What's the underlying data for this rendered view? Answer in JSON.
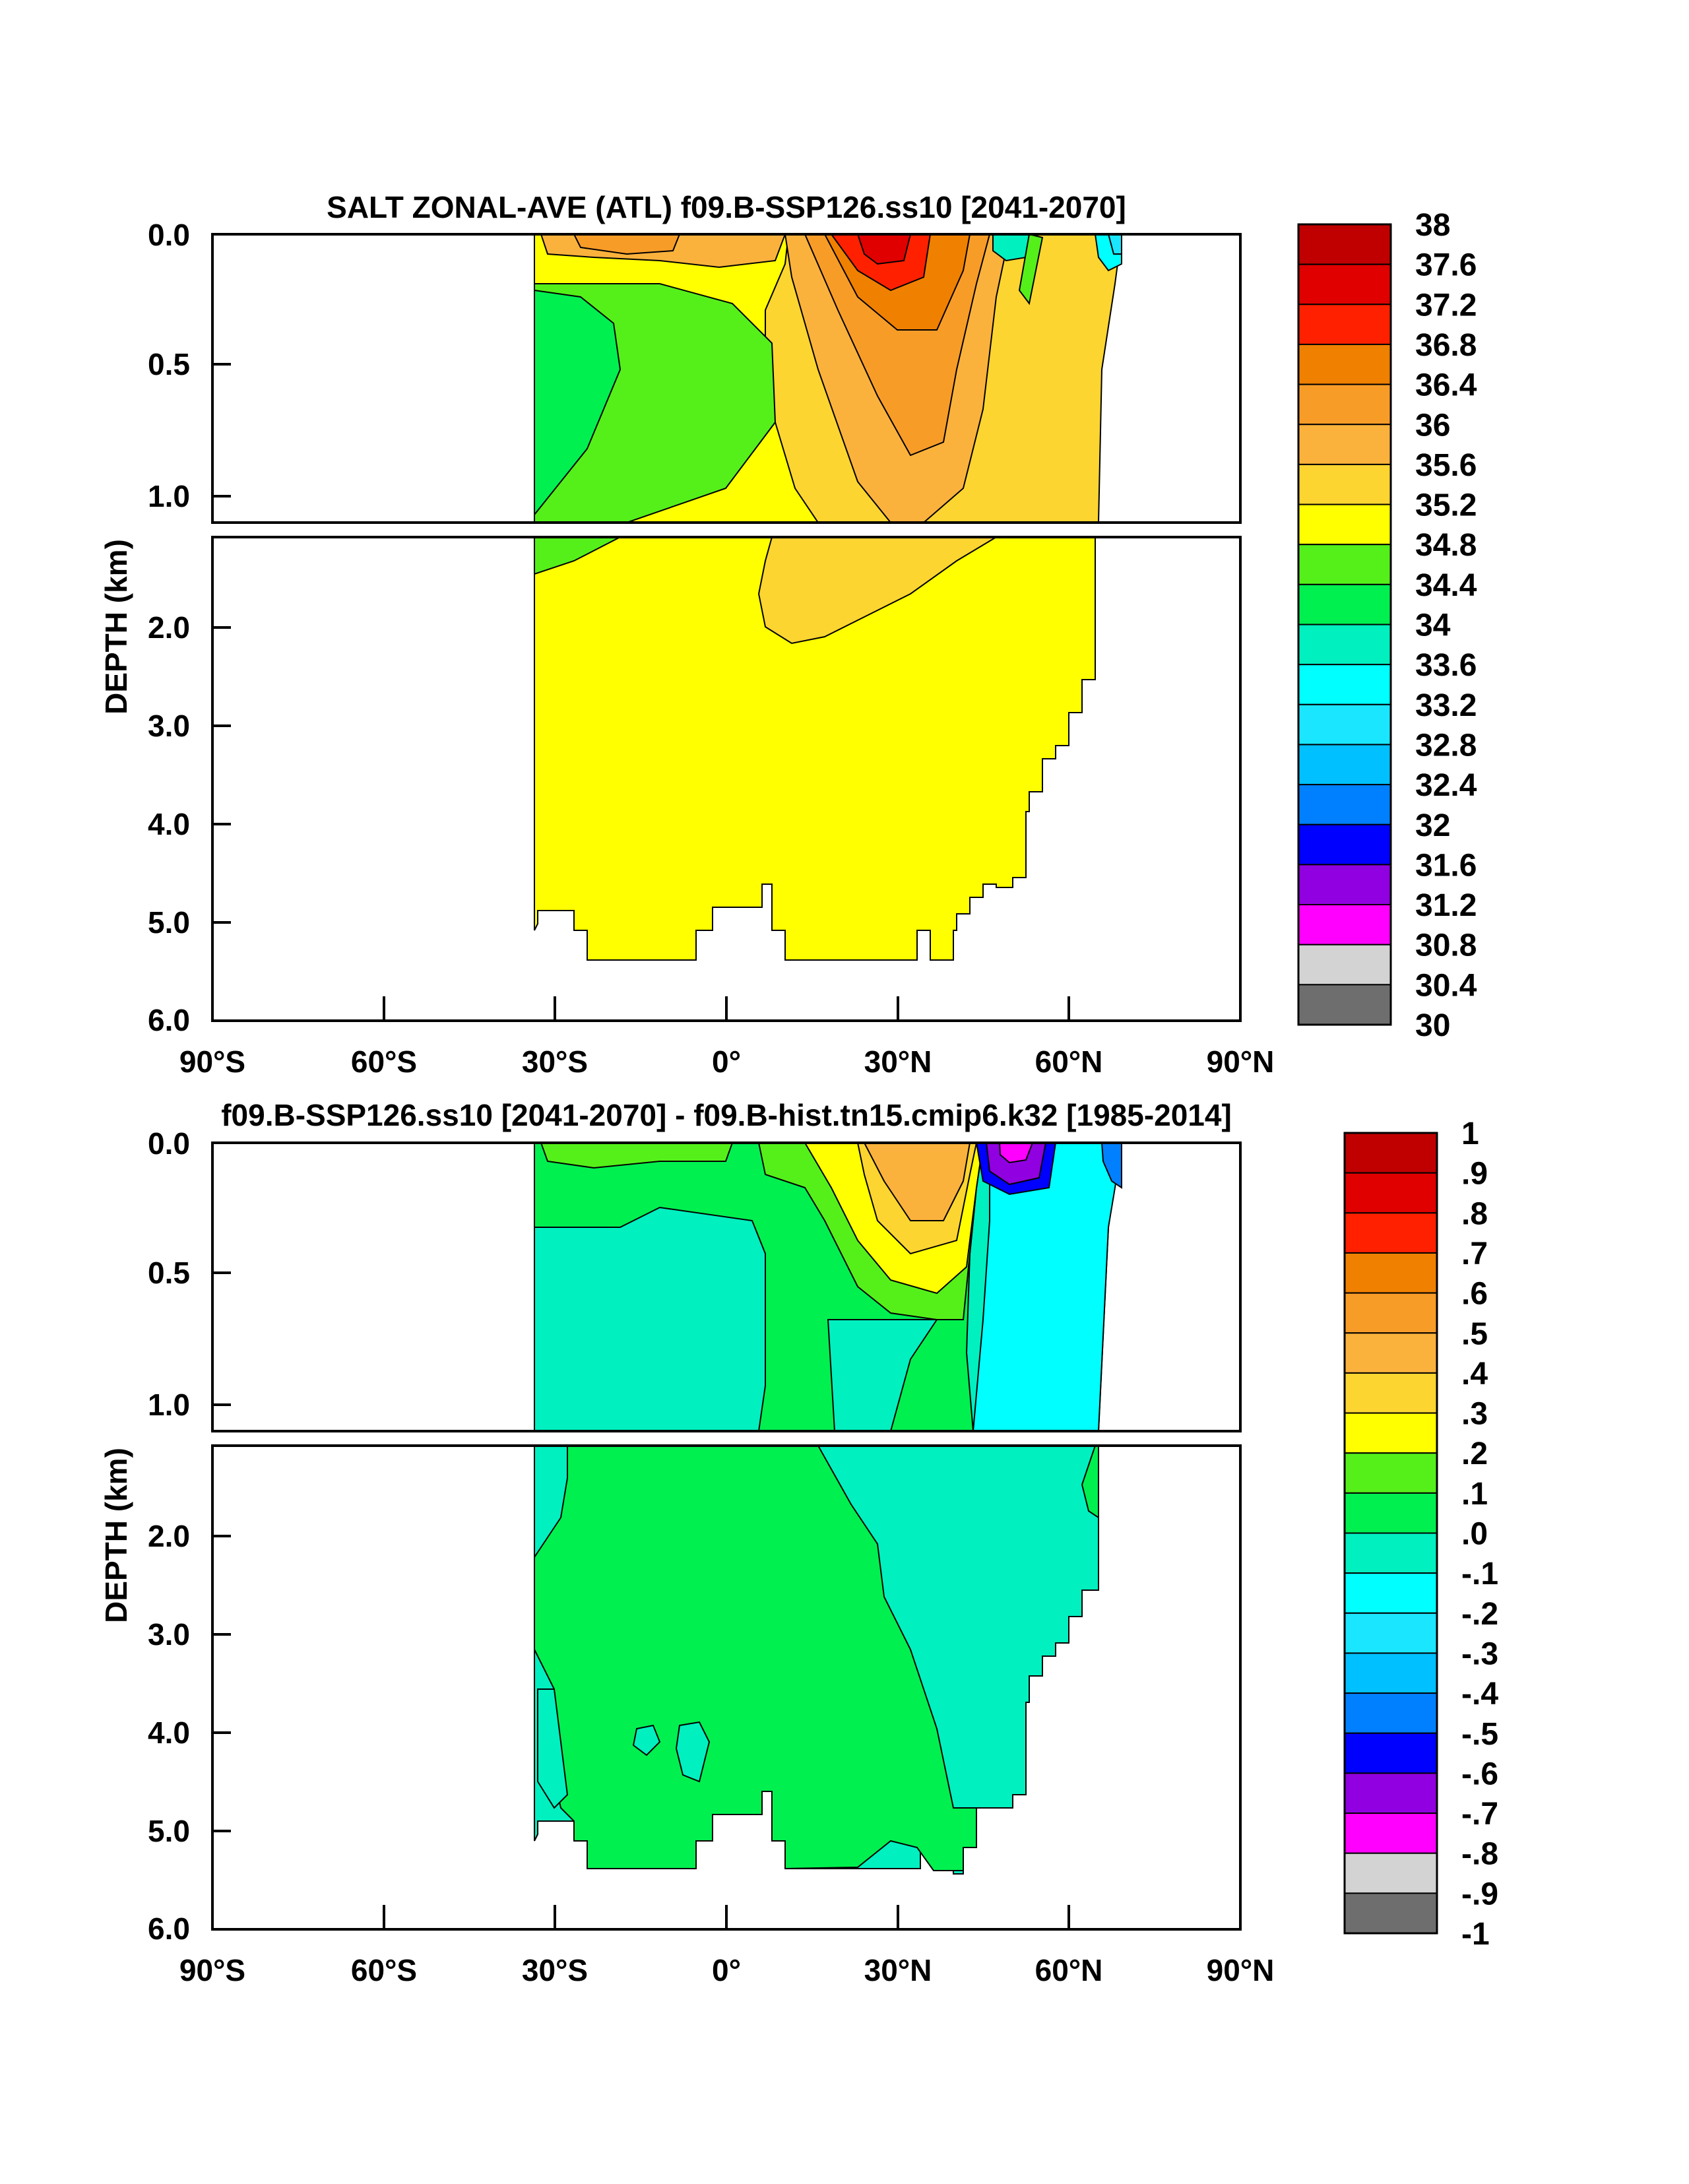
{
  "chart_data": [
    {
      "type": "heatmap",
      "title": "SALT ZONAL-AVE (ATL) f09.B-SSP126.ss10 [2041-2070]",
      "ylabel": "DEPTH (km)",
      "x_ticks": [
        "90°S",
        "60°S",
        "30°S",
        "0°",
        "30°N",
        "60°N",
        "90°N"
      ],
      "y_ticks_upper": [
        "0.0",
        "0.5",
        "1.0"
      ],
      "y_ticks_lower": [
        "2.0",
        "3.0",
        "4.0",
        "5.0",
        "6.0"
      ],
      "xlim": [
        -90,
        90
      ],
      "ylim_upper_km": [
        0,
        1.1
      ],
      "ylim_lower_km": [
        1.1,
        6.0
      ],
      "colorbar": {
        "labels": [
          "38",
          "37.6",
          "37.2",
          "36.8",
          "36.4",
          "36",
          "35.6",
          "35.2",
          "34.8",
          "34.4",
          "34",
          "33.6",
          "33.2",
          "32.8",
          "32.4",
          "32",
          "31.6",
          "31.2",
          "30.8",
          "30.4",
          "30"
        ],
        "colors": [
          "#c00000",
          "#e00000",
          "#ff2000",
          "#f08000",
          "#f89c28",
          "#fbb23c",
          "#fdd530",
          "#ffff00",
          "#55f01a",
          "#00f050",
          "#00f0c0",
          "#00ffff",
          "#1ae6ff",
          "#00c0ff",
          "#0080ff",
          "#0000ff",
          "#9000e0",
          "#ff00ff",
          "#d3d3d3",
          "#6e6e6e"
        ]
      }
    },
    {
      "type": "heatmap",
      "title": "f09.B-SSP126.ss10 [2041-2070] - f09.B-hist.tn15.cmip6.k32 [1985-2014]",
      "ylabel": "DEPTH (km)",
      "x_ticks": [
        "90°S",
        "60°S",
        "30°S",
        "0°",
        "30°N",
        "60°N",
        "90°N"
      ],
      "y_ticks_upper": [
        "0.0",
        "0.5",
        "1.0"
      ],
      "y_ticks_lower": [
        "2.0",
        "3.0",
        "4.0",
        "5.0",
        "6.0"
      ],
      "xlim": [
        -90,
        90
      ],
      "ylim_upper_km": [
        0,
        1.1
      ],
      "ylim_lower_km": [
        1.1,
        6.0
      ],
      "colorbar": {
        "labels": [
          "1",
          ".9",
          ".8",
          ".7",
          ".6",
          ".5",
          ".4",
          ".3",
          ".2",
          ".1",
          ".0",
          "-.1",
          "-.2",
          "-.3",
          "-.4",
          "-.5",
          "-.6",
          "-.7",
          "-.8",
          "-.9",
          "-1"
        ],
        "colors": [
          "#c00000",
          "#e00000",
          "#ff2000",
          "#f08000",
          "#f89c28",
          "#fbb23c",
          "#fdd530",
          "#ffff00",
          "#55f01a",
          "#00f050",
          "#00f0c0",
          "#00ffff",
          "#1ae6ff",
          "#00c0ff",
          "#0080ff",
          "#0000ff",
          "#9000e0",
          "#ff00ff",
          "#d3d3d3",
          "#6e6e6e"
        ]
      }
    }
  ]
}
